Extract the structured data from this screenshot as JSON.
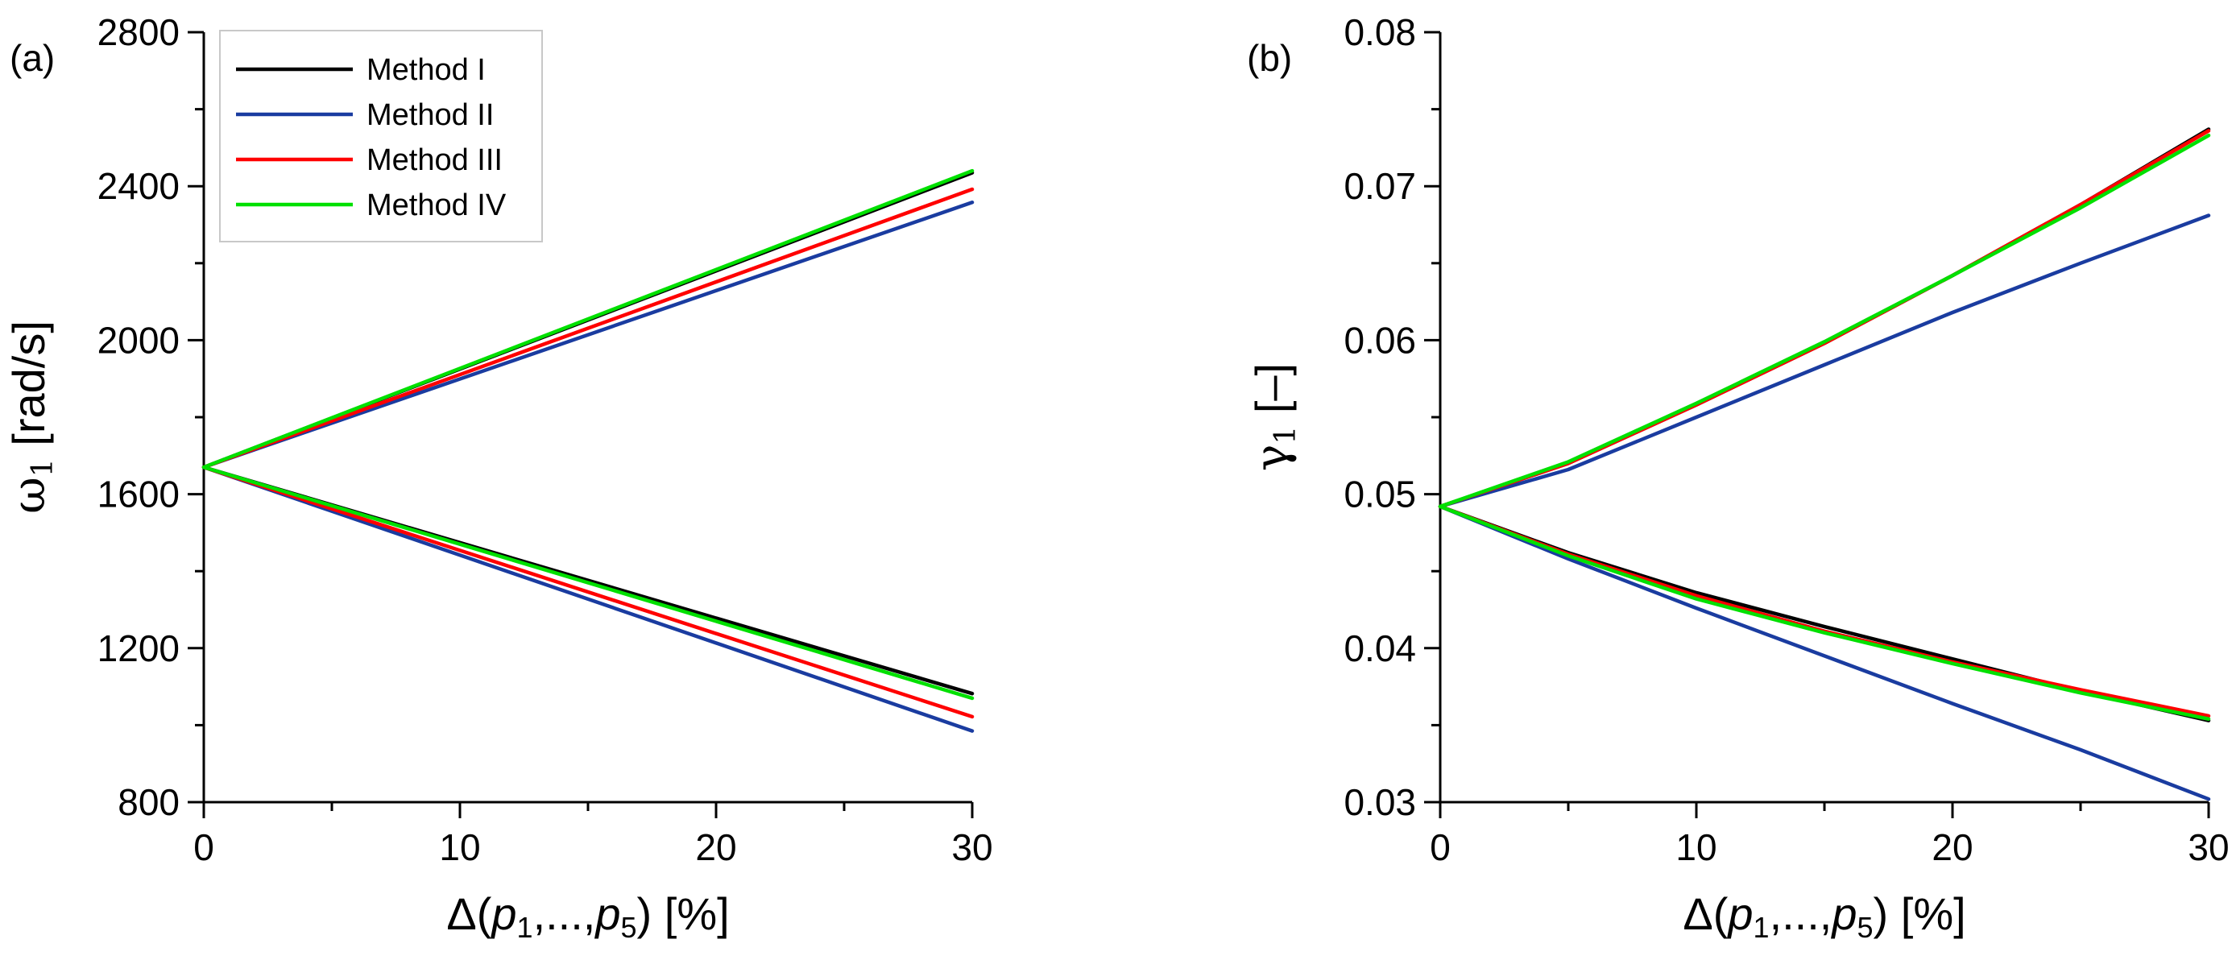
{
  "chart_data": [
    {
      "type": "line",
      "panel_label": "(a)",
      "title": "",
      "xlabel": "Δ(p1,...,p5) [%]",
      "xlabel_parts": {
        "lead": "Δ(",
        "p1": "p",
        "sub1": "1",
        "mid": ",...,",
        "p5": "p",
        "sub5": "5",
        "tail": ") [%]"
      },
      "ylabel": "ω1 [rad/s]",
      "ylabel_parts": {
        "sym": "ω",
        "sub": "1",
        "unit": " [rad/s]"
      },
      "xlim": [
        0,
        30
      ],
      "ylim": [
        800,
        2800
      ],
      "xticks": [
        0,
        10,
        20,
        30
      ],
      "xticks_minor": [
        5,
        15,
        25
      ],
      "yticks": [
        800,
        1200,
        1600,
        2000,
        2400,
        2800
      ],
      "yticks_minor": [
        1000,
        1400,
        1800,
        2200,
        2600
      ],
      "x": [
        0,
        30
      ],
      "series": [
        {
          "name": "Method I",
          "color": "#000000",
          "upper": [
            1670,
            2435
          ],
          "lower": [
            1670,
            1082
          ]
        },
        {
          "name": "Method II",
          "color": "#1a3ca0",
          "upper": [
            1670,
            2358
          ],
          "lower": [
            1670,
            985
          ]
        },
        {
          "name": "Method III",
          "color": "#ff0000",
          "upper": [
            1670,
            2392
          ],
          "lower": [
            1670,
            1022
          ]
        },
        {
          "name": "Method IV",
          "color": "#00e000",
          "upper": [
            1670,
            2440
          ],
          "lower": [
            1670,
            1070
          ]
        }
      ],
      "legend": {
        "placement": "top-left",
        "entries": [
          "Method I",
          "Method II",
          "Method III",
          "Method IV"
        ]
      }
    },
    {
      "type": "line",
      "panel_label": "(b)",
      "title": "",
      "xlabel": "Δ(p1,...,p5) [%]",
      "xlabel_parts": {
        "lead": "Δ(",
        "p1": "p",
        "sub1": "1",
        "mid": ",...,",
        "p5": "p",
        "sub5": "5",
        "tail": ") [%]"
      },
      "ylabel": "γ1 [–]",
      "ylabel_parts": {
        "sym": "γ",
        "sub": "1",
        "unit": " [–]"
      },
      "xlim": [
        0,
        30
      ],
      "ylim": [
        0.03,
        0.08
      ],
      "xticks": [
        0,
        10,
        20,
        30
      ],
      "xticks_minor": [
        5,
        15,
        25
      ],
      "yticks": [
        0.03,
        0.04,
        0.05,
        0.06,
        0.07,
        0.08
      ],
      "yticks_minor": [
        0.035,
        0.045,
        0.055,
        0.065,
        0.075
      ],
      "ytick_labels": [
        "0.03",
        "0.04",
        "0.05",
        "0.06",
        "0.07",
        "0.08"
      ],
      "x": [
        0,
        5,
        10,
        15,
        20,
        25,
        30
      ],
      "series": [
        {
          "name": "Method I",
          "color": "#000000",
          "upper": [
            0.0492,
            0.052,
            0.0558,
            0.0598,
            0.0642,
            0.0688,
            0.0737
          ],
          "lower": [
            0.0492,
            0.0462,
            0.0436,
            0.0414,
            0.0393,
            0.0372,
            0.0353
          ]
        },
        {
          "name": "Method II",
          "color": "#1a3ca0",
          "upper": [
            0.0492,
            0.0516,
            0.055,
            0.0584,
            0.0618,
            0.065,
            0.0681
          ],
          "lower": [
            0.0492,
            0.0458,
            0.0426,
            0.0395,
            0.0364,
            0.0334,
            0.0302
          ]
        },
        {
          "name": "Method III",
          "color": "#ff0000",
          "upper": [
            0.0492,
            0.052,
            0.0558,
            0.0598,
            0.0642,
            0.0688,
            0.0736
          ],
          "lower": [
            0.0492,
            0.0461,
            0.0434,
            0.0411,
            0.0391,
            0.0373,
            0.0356
          ]
        },
        {
          "name": "Method IV",
          "color": "#00e000",
          "upper": [
            0.0492,
            0.0521,
            0.0559,
            0.0599,
            0.0642,
            0.0686,
            0.0733
          ],
          "lower": [
            0.0492,
            0.046,
            0.0432,
            0.041,
            0.039,
            0.0371,
            0.0354
          ]
        }
      ]
    }
  ]
}
